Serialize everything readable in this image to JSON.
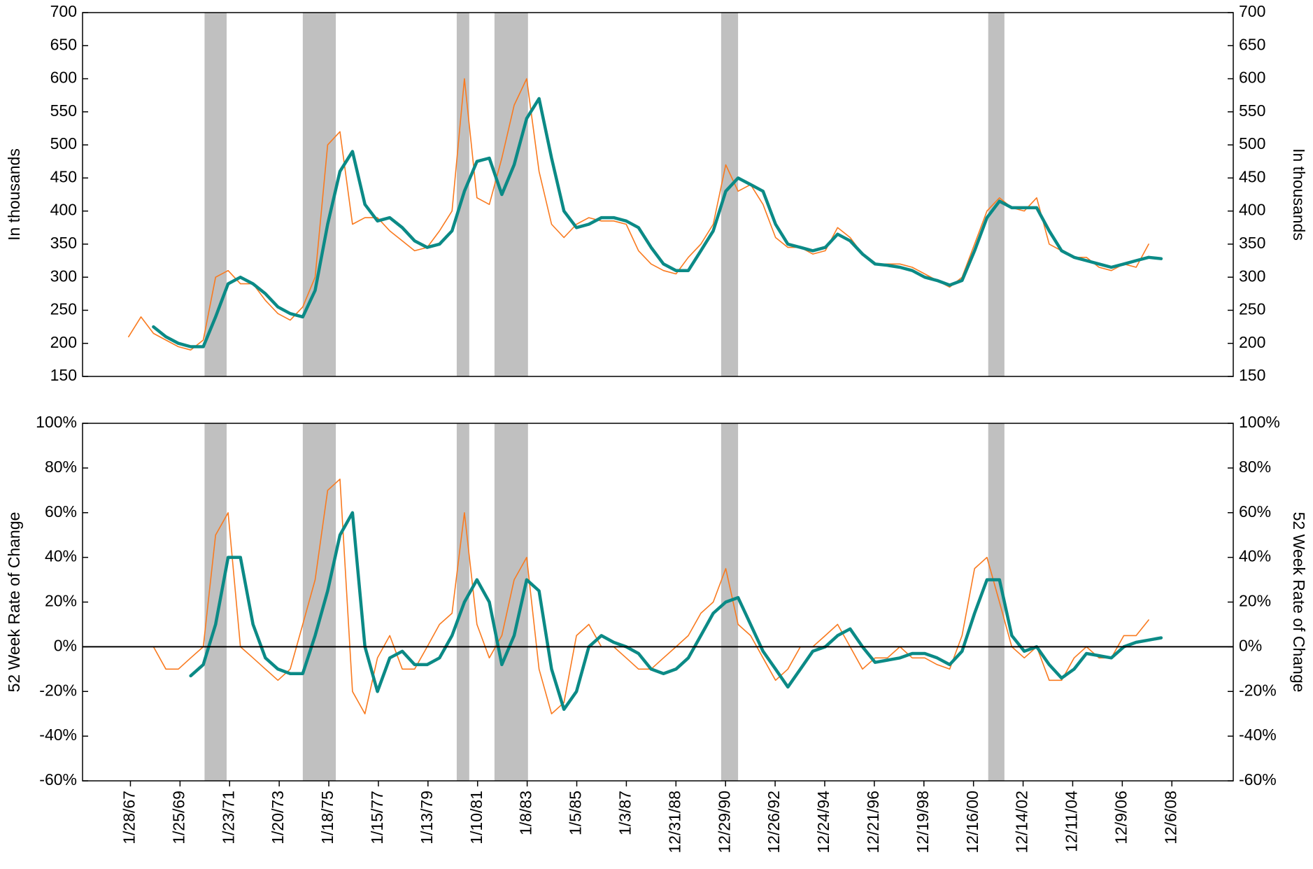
{
  "chart_data": [
    {
      "type": "line",
      "ylabel": "In thousands",
      "y2label": "In thousands",
      "xlim": [
        "2/24/65",
        "5/26/11"
      ],
      "ylim": [
        150,
        700
      ],
      "yticks": [
        150,
        200,
        250,
        300,
        350,
        400,
        450,
        500,
        550,
        600,
        650,
        700
      ],
      "y2lim": [
        150,
        700
      ],
      "y2ticks": [
        150,
        200,
        250,
        300,
        350,
        400,
        450,
        500,
        550,
        600,
        650,
        700
      ],
      "shaded_ranges": [
        [
          "1/20/70",
          "12/10/70"
        ],
        [
          "1/1/74",
          "5/1/75"
        ],
        [
          "3/10/80",
          "9/10/80"
        ],
        [
          "9/15/81",
          "1/20/83"
        ],
        [
          "10/25/90",
          "7/1/91"
        ],
        [
          "7/20/01",
          "3/15/02"
        ]
      ],
      "x": [
        "1/1/67",
        "7/1/67",
        "1/1/68",
        "7/1/68",
        "1/1/69",
        "7/1/69",
        "1/1/70",
        "7/1/70",
        "1/1/71",
        "7/1/71",
        "1/1/72",
        "7/1/72",
        "1/1/73",
        "7/1/73",
        "1/1/74",
        "7/1/74",
        "1/1/75",
        "7/1/75",
        "1/1/76",
        "7/1/76",
        "1/1/77",
        "7/1/77",
        "1/1/78",
        "7/1/78",
        "1/1/79",
        "7/1/79",
        "1/1/80",
        "7/1/80",
        "1/1/81",
        "7/1/81",
        "1/1/82",
        "7/1/82",
        "1/1/83",
        "7/1/83",
        "1/1/84",
        "7/1/84",
        "1/1/85",
        "7/1/85",
        "1/1/86",
        "7/1/86",
        "1/1/87",
        "7/1/87",
        "1/1/88",
        "7/1/88",
        "1/1/89",
        "7/1/89",
        "1/1/90",
        "7/1/90",
        "1/1/91",
        "7/1/91",
        "1/1/92",
        "7/1/92",
        "1/1/93",
        "7/1/93",
        "1/1/94",
        "7/1/94",
        "1/1/95",
        "7/1/95",
        "1/1/96",
        "7/1/96",
        "1/1/97",
        "7/1/97",
        "1/1/98",
        "7/1/98",
        "1/1/99",
        "7/1/99",
        "1/1/00",
        "7/1/00",
        "1/1/01",
        "7/1/01",
        "1/1/02",
        "7/1/02",
        "1/1/03",
        "7/1/03",
        "1/1/04",
        "7/1/04",
        "1/1/05",
        "7/1/05",
        "1/1/06",
        "7/1/06",
        "1/1/07",
        "7/1/07",
        "1/1/08",
        "7/1/08"
      ],
      "series": [
        {
          "color": "#f97a1f",
          "width": 1.6,
          "values": [
            210,
            240,
            215,
            205,
            195,
            190,
            205,
            300,
            310,
            290,
            290,
            265,
            245,
            235,
            255,
            300,
            500,
            520,
            380,
            390,
            390,
            370,
            355,
            340,
            345,
            370,
            400,
            600,
            420,
            410,
            480,
            560,
            600,
            460,
            380,
            360,
            380,
            390,
            385,
            385,
            380,
            340,
            320,
            310,
            305,
            330,
            350,
            380,
            470,
            430,
            440,
            410,
            360,
            345,
            345,
            335,
            340,
            375,
            360,
            335,
            320,
            320,
            320,
            315,
            305,
            295,
            285,
            300,
            350,
            400,
            420,
            405,
            400,
            420,
            350,
            340,
            330,
            330,
            315,
            310,
            320,
            315,
            350,
            null
          ]
        },
        {
          "color": "#0b8a86",
          "width": 4.5,
          "values": [
            null,
            null,
            225,
            210,
            200,
            195,
            195,
            240,
            290,
            300,
            290,
            275,
            255,
            245,
            240,
            280,
            380,
            460,
            490,
            410,
            385,
            390,
            375,
            355,
            345,
            350,
            370,
            430,
            475,
            480,
            425,
            470,
            540,
            570,
            480,
            400,
            375,
            380,
            390,
            390,
            385,
            375,
            345,
            320,
            310,
            310,
            340,
            370,
            430,
            450,
            440,
            430,
            380,
            350,
            345,
            340,
            345,
            365,
            355,
            335,
            320,
            318,
            315,
            310,
            300,
            295,
            288,
            295,
            340,
            390,
            415,
            405,
            405,
            405,
            370,
            340,
            330,
            325,
            320,
            315,
            320,
            325,
            330,
            328
          ]
        }
      ]
    },
    {
      "type": "line",
      "ylabel": "52 Week Rate of Change",
      "y2label": "52 Week Rate of Change",
      "xlim": [
        "2/24/65",
        "5/26/11"
      ],
      "zero_line": true,
      "ylim": [
        -60,
        100
      ],
      "yticks": [
        {
          "value": -60,
          "label": "-60%"
        },
        {
          "value": -40,
          "label": "-40%"
        },
        {
          "value": -20,
          "label": "-20%"
        },
        {
          "value": 0,
          "label": "0%"
        },
        {
          "value": 20,
          "label": "20%"
        },
        {
          "value": 40,
          "label": "40%"
        },
        {
          "value": 60,
          "label": "60%"
        },
        {
          "value": 80,
          "label": "80%"
        },
        {
          "value": 100,
          "label": "100%"
        }
      ],
      "y2lim": [
        -60,
        100
      ],
      "y2ticks": [
        {
          "value": -60,
          "label": "-60%"
        },
        {
          "value": -40,
          "label": "-40%"
        },
        {
          "value": -20,
          "label": "-20%"
        },
        {
          "value": 0,
          "label": "0%"
        },
        {
          "value": 20,
          "label": "20%"
        },
        {
          "value": 40,
          "label": "40%"
        },
        {
          "value": 60,
          "label": "60%"
        },
        {
          "value": 80,
          "label": "80%"
        },
        {
          "value": 100,
          "label": "100%"
        }
      ],
      "xticks": [
        "1/28/67",
        "1/25/69",
        "1/23/71",
        "1/20/73",
        "1/18/75",
        "1/15/77",
        "1/13/79",
        "1/10/81",
        "1/8/83",
        "1/5/85",
        "1/3/87",
        "12/31/88",
        "12/29/90",
        "12/26/92",
        "12/24/94",
        "12/21/96",
        "12/19/98",
        "12/16/00",
        "12/14/02",
        "12/11/04",
        "12/9/06",
        "12/6/08"
      ],
      "shaded_ranges": [
        [
          "1/20/70",
          "12/10/70"
        ],
        [
          "1/1/74",
          "5/1/75"
        ],
        [
          "3/10/80",
          "9/10/80"
        ],
        [
          "9/15/81",
          "1/20/83"
        ],
        [
          "10/25/90",
          "7/1/91"
        ],
        [
          "7/20/01",
          "3/15/02"
        ]
      ],
      "x": [
        "1/1/67",
        "7/1/67",
        "1/1/68",
        "7/1/68",
        "1/1/69",
        "7/1/69",
        "1/1/70",
        "7/1/70",
        "1/1/71",
        "7/1/71",
        "1/1/72",
        "7/1/72",
        "1/1/73",
        "7/1/73",
        "1/1/74",
        "7/1/74",
        "1/1/75",
        "7/1/75",
        "1/1/76",
        "7/1/76",
        "1/1/77",
        "7/1/77",
        "1/1/78",
        "7/1/78",
        "1/1/79",
        "7/1/79",
        "1/1/80",
        "7/1/80",
        "1/1/81",
        "7/1/81",
        "1/1/82",
        "7/1/82",
        "1/1/83",
        "7/1/83",
        "1/1/84",
        "7/1/84",
        "1/1/85",
        "7/1/85",
        "1/1/86",
        "7/1/86",
        "1/1/87",
        "7/1/87",
        "1/1/88",
        "7/1/88",
        "1/1/89",
        "7/1/89",
        "1/1/90",
        "7/1/90",
        "1/1/91",
        "7/1/91",
        "1/1/92",
        "7/1/92",
        "1/1/93",
        "7/1/93",
        "1/1/94",
        "7/1/94",
        "1/1/95",
        "7/1/95",
        "1/1/96",
        "7/1/96",
        "1/1/97",
        "7/1/97",
        "1/1/98",
        "7/1/98",
        "1/1/99",
        "7/1/99",
        "1/1/00",
        "7/1/00",
        "1/1/01",
        "7/1/01",
        "1/1/02",
        "7/1/02",
        "1/1/03",
        "7/1/03",
        "1/1/04",
        "7/1/04",
        "1/1/05",
        "7/1/05",
        "1/1/06",
        "7/1/06",
        "1/1/07",
        "7/1/07",
        "1/1/08",
        "7/1/08"
      ],
      "series": [
        {
          "color": "#f97a1f",
          "width": 1.6,
          "values": [
            null,
            null,
            0,
            -10,
            -10,
            -5,
            0,
            50,
            60,
            0,
            -5,
            -10,
            -15,
            -10,
            10,
            30,
            70,
            75,
            -20,
            -30,
            -5,
            5,
            -10,
            -10,
            0,
            10,
            15,
            60,
            10,
            -5,
            5,
            30,
            40,
            -10,
            -30,
            -25,
            5,
            10,
            0,
            0,
            -5,
            -10,
            -10,
            -5,
            0,
            5,
            15,
            20,
            35,
            10,
            5,
            -5,
            -15,
            -10,
            0,
            0,
            5,
            10,
            0,
            -10,
            -5,
            -5,
            0,
            -5,
            -5,
            -8,
            -10,
            5,
            35,
            40,
            20,
            0,
            -5,
            0,
            -15,
            -15,
            -5,
            0,
            -5,
            -5,
            5,
            5,
            12,
            null
          ]
        },
        {
          "color": "#0b8a86",
          "width": 4.5,
          "values": [
            null,
            null,
            null,
            null,
            null,
            -13,
            -8,
            10,
            40,
            40,
            10,
            -5,
            -10,
            -12,
            -12,
            5,
            25,
            50,
            60,
            0,
            -20,
            -5,
            -2,
            -8,
            -8,
            -5,
            5,
            20,
            30,
            20,
            -8,
            5,
            30,
            25,
            -10,
            -28,
            -20,
            0,
            5,
            2,
            0,
            -3,
            -10,
            -12,
            -10,
            -5,
            5,
            15,
            20,
            22,
            10,
            -2,
            -10,
            -18,
            -10,
            -2,
            0,
            5,
            8,
            0,
            -7,
            -6,
            -5,
            -3,
            -3,
            -5,
            -8,
            -2,
            15,
            30,
            30,
            5,
            -2,
            0,
            -8,
            -14,
            -10,
            -3,
            -4,
            -5,
            0,
            2,
            3,
            4
          ]
        }
      ]
    }
  ]
}
